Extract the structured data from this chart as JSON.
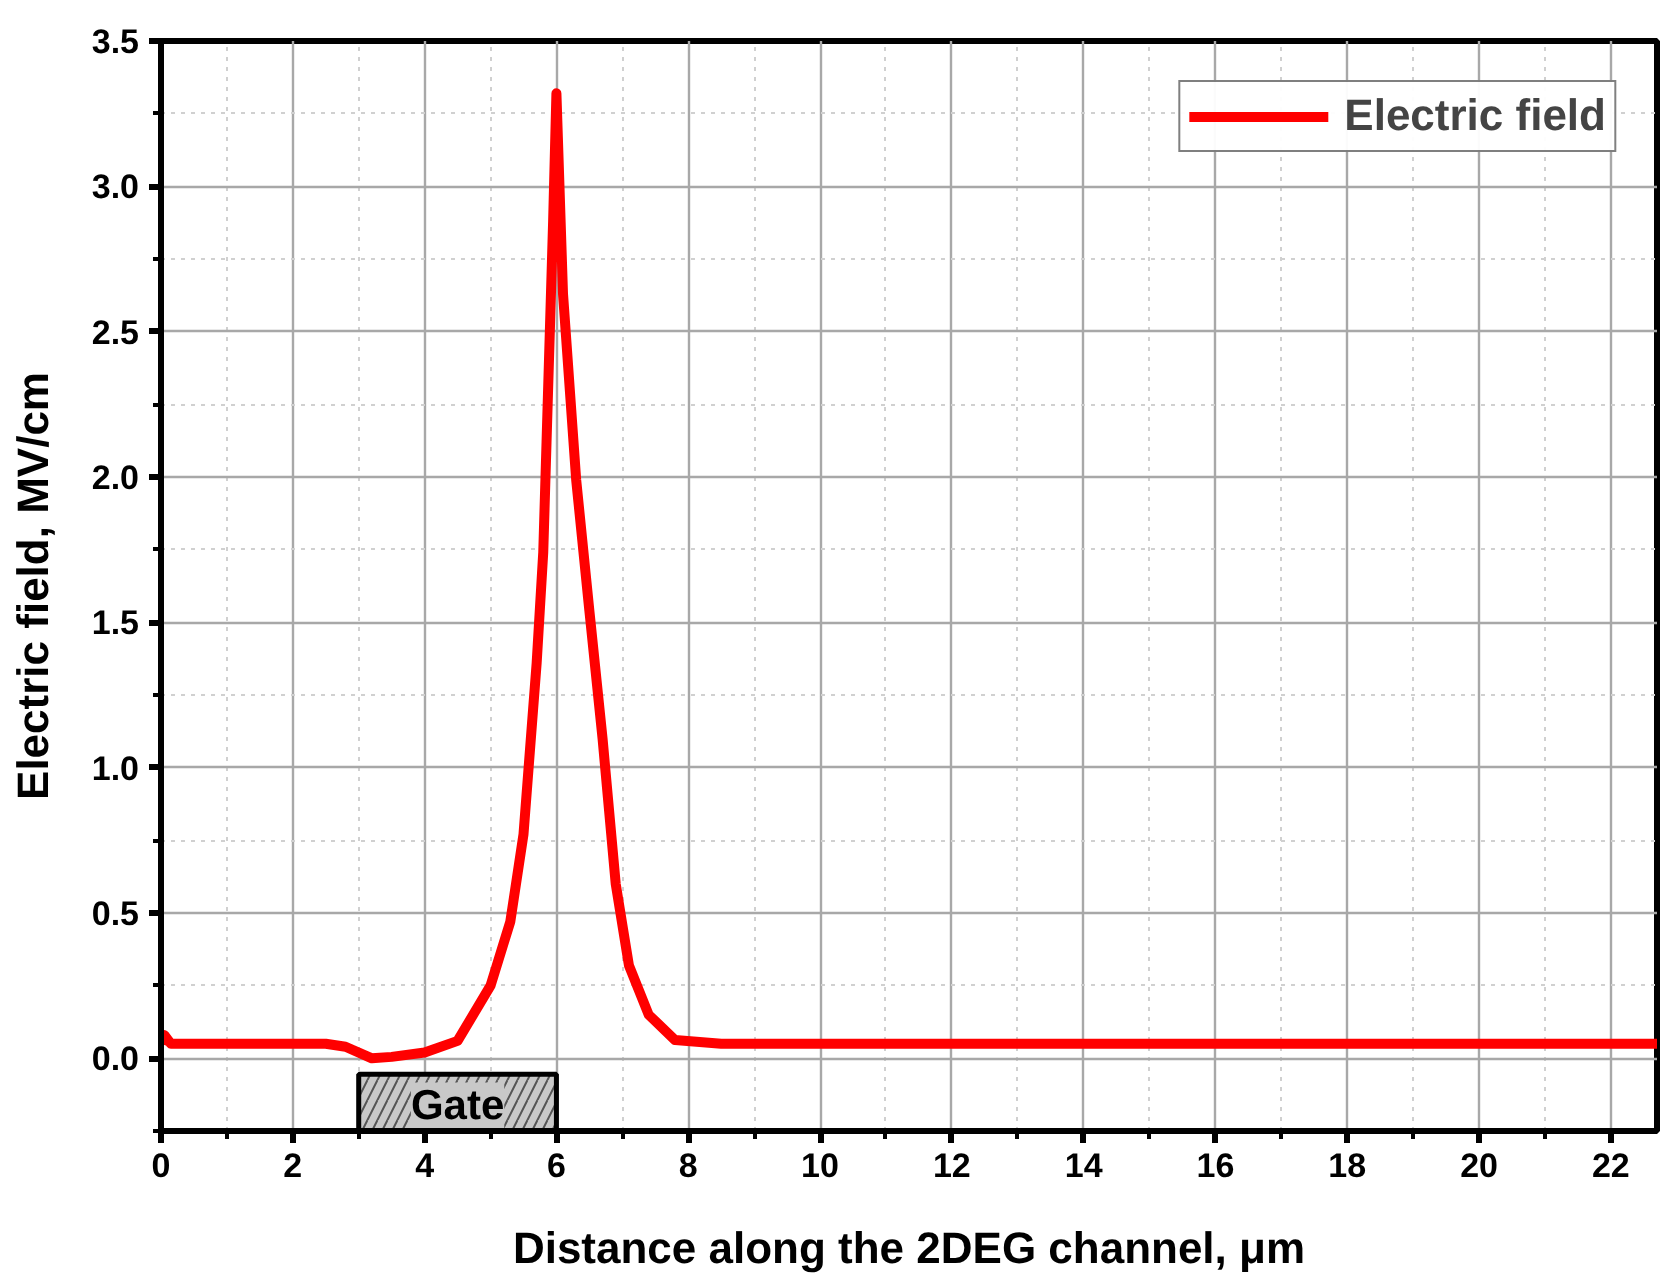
{
  "chart_data": {
    "type": "line",
    "xlabel": "Distance along the 2DEG channel, μm",
    "ylabel": "Electric field, MV/cm",
    "xlim": [
      0,
      22.7
    ],
    "ylim": [
      -0.25,
      3.5
    ],
    "xticks": [
      0,
      2,
      4,
      6,
      8,
      10,
      12,
      14,
      16,
      18,
      20,
      22
    ],
    "yticks": [
      {
        "value": 0,
        "label": "0.0"
      },
      0.5,
      {
        "value": 1,
        "label": "1.0"
      },
      1.5,
      {
        "value": 2,
        "label": "2.0"
      },
      2.5,
      {
        "value": 3,
        "label": "3.0"
      },
      3.5
    ],
    "grid": true,
    "legend": "top right",
    "line_style": "solid",
    "bands": [
      {
        "axis": "x",
        "from": 3,
        "to": 6,
        "label": "Gate",
        "color": "#c8c8c8"
      }
    ],
    "series": [
      {
        "name": "Electric field",
        "color": "#ff0000",
        "x": [
          0,
          0.05,
          0.15,
          1,
          2,
          2.5,
          2.8,
          3.2,
          3.5,
          4,
          4.5,
          5,
          5.3,
          5.5,
          5.7,
          5.8,
          5.85,
          5.95,
          6.0,
          6.1,
          6.3,
          6.5,
          6.7,
          6.9,
          7.1,
          7.4,
          7.8,
          8.5,
          10,
          12,
          14,
          16,
          18,
          20,
          22,
          22.7
        ],
        "values": [
          0.05,
          0.08,
          0.05,
          0.05,
          0.05,
          0.05,
          0.04,
          0.0,
          0.005,
          0.02,
          0.06,
          0.25,
          0.47,
          0.77,
          1.36,
          1.74,
          2.12,
          2.88,
          3.32,
          2.63,
          1.99,
          1.54,
          1.1,
          0.6,
          0.32,
          0.15,
          0.063,
          0.05,
          0.05,
          0.05,
          0.05,
          0.05,
          0.05,
          0.05,
          0.05,
          0.05
        ]
      }
    ]
  }
}
